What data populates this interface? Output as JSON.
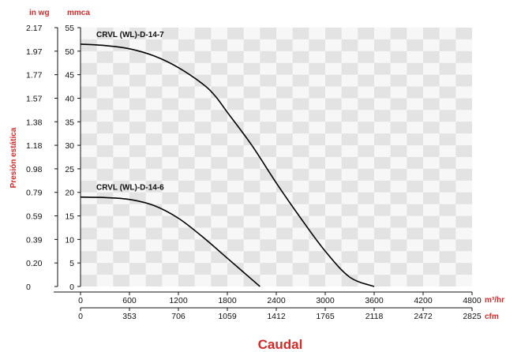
{
  "chart_data": {
    "type": "line",
    "xlabel": "Caudal",
    "ylabel": "Presión estática",
    "y_units": {
      "primary": "mmca",
      "secondary": "in wg"
    },
    "x_units": {
      "primary": "m³/hr",
      "secondary": "cfm"
    },
    "xlim": [
      0,
      4800
    ],
    "ylim": [
      0,
      55
    ],
    "x_ticks": [
      0,
      600,
      1200,
      1800,
      2400,
      3000,
      3600,
      4200,
      4800
    ],
    "x_ticks_cfm": [
      "0",
      "353",
      "706",
      "1059",
      "1412",
      "1765",
      "2118",
      "2472",
      "2825"
    ],
    "y_ticks": [
      0,
      5,
      10,
      15,
      20,
      25,
      30,
      35,
      40,
      45,
      50,
      55
    ],
    "y_ticks_inwg": [
      "0",
      "0.20",
      "0.39",
      "0.59",
      "0.79",
      "0.98",
      "1.18",
      "1.38",
      "1.57",
      "1.77",
      "1.97",
      "2.17"
    ],
    "grid": true,
    "series": [
      {
        "name": "CRVL (WL)-D-14-7",
        "color": "#000000",
        "x": [
          0,
          300,
          600,
          900,
          1200,
          1500,
          1650,
          1800,
          2100,
          2400,
          2700,
          3000,
          3300,
          3600
        ],
        "y": [
          51.5,
          51.2,
          50.5,
          49.0,
          46.5,
          43.0,
          40.5,
          37.0,
          30.0,
          22.0,
          14.5,
          7.5,
          2.0,
          0
        ]
      },
      {
        "name": "CRVL (WL)-D-14-6",
        "color": "#000000",
        "x": [
          0,
          300,
          600,
          900,
          1200,
          1500,
          1800,
          2000,
          2200
        ],
        "y": [
          19.0,
          18.9,
          18.5,
          17.2,
          14.5,
          10.5,
          6.0,
          3.0,
          0
        ]
      }
    ]
  },
  "colors": {
    "accent": "#d42a2a",
    "grid_dark": "#e3e3e3",
    "grid_light": "#f7f7f7"
  }
}
